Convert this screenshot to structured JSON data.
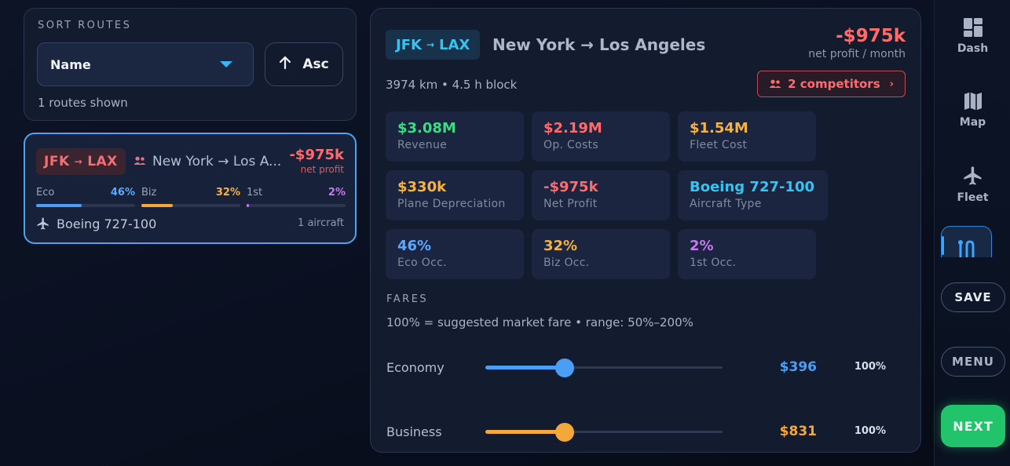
{
  "sort": {
    "title": "SORT ROUTES",
    "selected": "Name",
    "order_label": "Asc",
    "routes_shown": "1 routes shown"
  },
  "route_card": {
    "from": "JFK",
    "to": "LAX",
    "route_name": "New York → Los A...",
    "profit": "-$975k",
    "profit_label": "net profit",
    "eco_label": "Eco",
    "eco_pct": "46%",
    "eco_value": 46,
    "biz_label": "Biz",
    "biz_pct": "32%",
    "biz_value": 32,
    "first_label": "1st",
    "first_pct": "2%",
    "first_value": 2,
    "aircraft": "Boeing 727-100",
    "aircraft_count": "1 aircraft"
  },
  "detail": {
    "from": "JFK",
    "to": "LAX",
    "route_name": "New York → Los Angeles",
    "profit": "-$975k",
    "profit_label": "net profit / month",
    "meta": "3974 km • 4.5 h block",
    "competitors": "2 competitors",
    "stats": [
      {
        "value": "$3.08M",
        "label": "Revenue",
        "color": "#3ddc84"
      },
      {
        "value": "$2.19M",
        "label": "Op. Costs",
        "color": "#ff6b6b"
      },
      {
        "value": "$1.54M",
        "label": "Fleet Cost",
        "color": "#f5b342"
      },
      {
        "value": "$330k",
        "label": "Plane Depreciation",
        "color": "#f5b342"
      },
      {
        "value": "-$975k",
        "label": "Net Profit",
        "color": "#ff6b6b"
      },
      {
        "value": "Boeing 727-100",
        "label": "Aircraft Type",
        "color": "#35c3f2"
      },
      {
        "value": "46%",
        "label": "Eco Occ.",
        "color": "#5aa8ff"
      },
      {
        "value": "32%",
        "label": "Biz Occ.",
        "color": "#f5b342"
      },
      {
        "value": "2%",
        "label": "1st Occ.",
        "color": "#c678ee"
      }
    ],
    "fares_title": "FARES",
    "fares_note": "100% = suggested market fare  •  range: 50%–200%",
    "fares": [
      {
        "label": "Economy",
        "price": "$396",
        "pct": "100%",
        "value": 100,
        "color": "#4b9ef5"
      },
      {
        "label": "Business",
        "price": "$831",
        "pct": "100%",
        "value": 100,
        "color": "#f5a83a"
      }
    ]
  },
  "nav": {
    "dash": "Dash",
    "map": "Map",
    "fleet": "Fleet",
    "save": "SAVE",
    "menu": "MENU",
    "next": "NEXT"
  },
  "colors": {
    "accent": "#4aa3f3",
    "negative": "#ff6b6b",
    "positive": "#3ddc84",
    "warning": "#f5b342",
    "cyan": "#35c3f2",
    "purple": "#c678ee",
    "next": "#21c46a"
  }
}
